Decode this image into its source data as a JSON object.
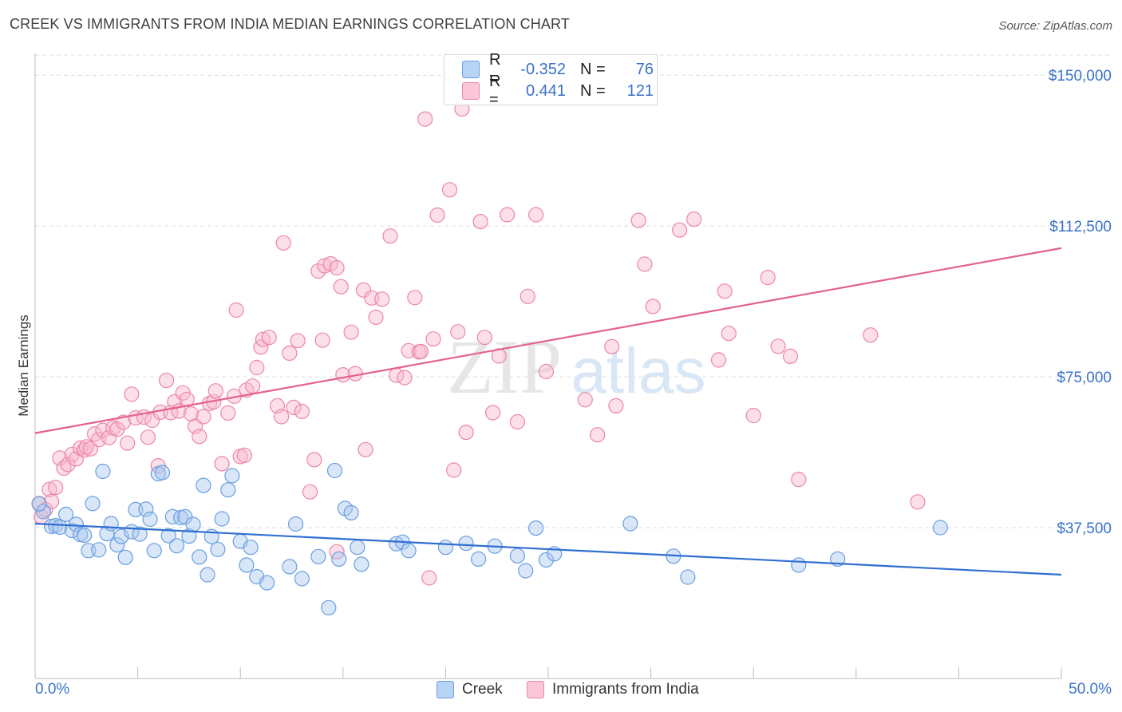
{
  "header": {
    "title": "CREEK VS IMMIGRANTS FROM INDIA MEDIAN EARNINGS CORRELATION CHART",
    "source": "Source: ZipAtlas.com"
  },
  "legend": {
    "r_label": "R =",
    "n_label": "N =",
    "rows": [
      {
        "name": "Creek",
        "r": "-0.352",
        "n": "76"
      },
      {
        "name": "Immigrants from India",
        "r": "0.441",
        "n": "121"
      }
    ]
  },
  "watermark": {
    "zip": "ZIP",
    "atlas": "atlas"
  },
  "colors": {
    "creek_fill": "#a8c8f0",
    "creek_stroke": "#6a9fe0",
    "creek_line": "#2f6fd1",
    "india_fill": "#f8b8cc",
    "india_stroke": "#ec86a8",
    "india_line": "#e4628c",
    "axis_label": "#3a72c8",
    "grid": "#dddddd"
  },
  "chart_data": {
    "type": "scatter",
    "title": "CREEK VS IMMIGRANTS FROM INDIA MEDIAN EARNINGS CORRELATION CHART",
    "xlabel": "",
    "ylabel": "Median Earnings",
    "xlim": [
      0,
      50
    ],
    "ylim": [
      0,
      155000
    ],
    "x_tick_labels": [
      "0.0%",
      "50.0%"
    ],
    "y_ticks": [
      {
        "value": 37500,
        "label": "$37,500"
      },
      {
        "value": 75000,
        "label": "$75,000"
      },
      {
        "value": 112500,
        "label": "$112,500"
      },
      {
        "value": 150000,
        "label": "$150,000"
      }
    ],
    "series": [
      {
        "name": "Creek",
        "r": -0.352,
        "n": 76,
        "trend": {
          "x": [
            0,
            50
          ],
          "y": [
            38500,
            25800
          ]
        },
        "points": [
          [
            0.4,
            41500
          ],
          [
            0.8,
            37800
          ],
          [
            1.0,
            38000
          ],
          [
            1.2,
            37600
          ],
          [
            1.5,
            40800
          ],
          [
            1.8,
            36800
          ],
          [
            2.0,
            38300
          ],
          [
            2.2,
            35800
          ],
          [
            2.4,
            35600
          ],
          [
            2.6,
            31800
          ],
          [
            2.8,
            43500
          ],
          [
            3.1,
            32000
          ],
          [
            3.3,
            51500
          ],
          [
            3.5,
            36000
          ],
          [
            3.7,
            38500
          ],
          [
            4.0,
            33200
          ],
          [
            4.2,
            35300
          ],
          [
            4.4,
            30100
          ],
          [
            4.7,
            36500
          ],
          [
            4.9,
            42000
          ],
          [
            5.1,
            35900
          ],
          [
            5.4,
            42100
          ],
          [
            5.6,
            39600
          ],
          [
            5.8,
            31800
          ],
          [
            6.0,
            50900
          ],
          [
            6.2,
            51200
          ],
          [
            6.5,
            35500
          ],
          [
            6.7,
            40200
          ],
          [
            6.9,
            33000
          ],
          [
            7.1,
            40000
          ],
          [
            7.3,
            40200
          ],
          [
            7.5,
            35400
          ],
          [
            7.7,
            38300
          ],
          [
            8.0,
            30200
          ],
          [
            8.2,
            48000
          ],
          [
            8.4,
            25800
          ],
          [
            8.6,
            35300
          ],
          [
            8.9,
            32100
          ],
          [
            9.1,
            39700
          ],
          [
            9.4,
            46900
          ],
          [
            9.6,
            50400
          ],
          [
            10.0,
            34100
          ],
          [
            10.3,
            28200
          ],
          [
            10.5,
            32600
          ],
          [
            10.8,
            25300
          ],
          [
            11.3,
            23800
          ],
          [
            12.4,
            27800
          ],
          [
            12.7,
            38400
          ],
          [
            13.0,
            24800
          ],
          [
            13.8,
            30300
          ],
          [
            14.3,
            17600
          ],
          [
            14.6,
            51700
          ],
          [
            14.8,
            29700
          ],
          [
            15.1,
            42300
          ],
          [
            15.4,
            41200
          ],
          [
            15.7,
            32600
          ],
          [
            15.9,
            28400
          ],
          [
            17.6,
            33500
          ],
          [
            17.9,
            33900
          ],
          [
            18.2,
            31800
          ],
          [
            20.0,
            32600
          ],
          [
            21.0,
            33600
          ],
          [
            21.6,
            29700
          ],
          [
            22.4,
            32900
          ],
          [
            23.5,
            30500
          ],
          [
            23.9,
            26800
          ],
          [
            24.4,
            37400
          ],
          [
            24.9,
            29500
          ],
          [
            25.3,
            31000
          ],
          [
            29.0,
            38500
          ],
          [
            31.1,
            30400
          ],
          [
            31.8,
            25200
          ],
          [
            37.2,
            28200
          ],
          [
            39.1,
            29700
          ],
          [
            44.1,
            37500
          ],
          [
            0.2,
            43400
          ]
        ]
      },
      {
        "name": "Immigrants from India",
        "r": 0.441,
        "n": 121,
        "trend": {
          "x": [
            0,
            50
          ],
          "y": [
            61000,
            107000
          ]
        },
        "points": [
          [
            0.2,
            43500
          ],
          [
            0.3,
            40200
          ],
          [
            0.5,
            42000
          ],
          [
            0.7,
            47000
          ],
          [
            0.8,
            44000
          ],
          [
            1.0,
            47500
          ],
          [
            1.2,
            54800
          ],
          [
            1.4,
            52300
          ],
          [
            1.6,
            53200
          ],
          [
            1.8,
            55700
          ],
          [
            2.0,
            54600
          ],
          [
            2.2,
            57300
          ],
          [
            2.4,
            56800
          ],
          [
            2.5,
            57600
          ],
          [
            2.7,
            57100
          ],
          [
            2.9,
            60800
          ],
          [
            3.1,
            59400
          ],
          [
            3.3,
            61700
          ],
          [
            3.6,
            59900
          ],
          [
            3.8,
            62300
          ],
          [
            4.0,
            62000
          ],
          [
            4.3,
            63700
          ],
          [
            4.5,
            58500
          ],
          [
            4.7,
            70700
          ],
          [
            4.9,
            64800
          ],
          [
            5.3,
            65000
          ],
          [
            5.5,
            60000
          ],
          [
            5.7,
            64200
          ],
          [
            6.0,
            52900
          ],
          [
            6.1,
            66200
          ],
          [
            6.4,
            74100
          ],
          [
            6.6,
            66100
          ],
          [
            6.8,
            68800
          ],
          [
            7.0,
            66500
          ],
          [
            7.2,
            71000
          ],
          [
            7.4,
            69400
          ],
          [
            7.6,
            65800
          ],
          [
            7.8,
            62700
          ],
          [
            8.0,
            60200
          ],
          [
            8.2,
            65100
          ],
          [
            8.5,
            68400
          ],
          [
            8.7,
            68800
          ],
          [
            8.8,
            71500
          ],
          [
            9.1,
            53400
          ],
          [
            9.4,
            66000
          ],
          [
            9.7,
            70200
          ],
          [
            9.8,
            91600
          ],
          [
            10.0,
            55200
          ],
          [
            10.3,
            71700
          ],
          [
            10.6,
            72700
          ],
          [
            10.8,
            77300
          ],
          [
            11.0,
            82400
          ],
          [
            11.1,
            84300
          ],
          [
            11.4,
            84800
          ],
          [
            11.8,
            67800
          ],
          [
            12.0,
            65100
          ],
          [
            12.1,
            108300
          ],
          [
            12.4,
            80900
          ],
          [
            12.6,
            67400
          ],
          [
            12.8,
            84000
          ],
          [
            13.0,
            66400
          ],
          [
            13.4,
            46400
          ],
          [
            13.6,
            54400
          ],
          [
            13.8,
            101300
          ],
          [
            14.0,
            84100
          ],
          [
            14.1,
            102600
          ],
          [
            14.4,
            103100
          ],
          [
            14.7,
            102100
          ],
          [
            14.9,
            97400
          ],
          [
            15.0,
            75500
          ],
          [
            15.4,
            86100
          ],
          [
            15.6,
            75800
          ],
          [
            16.0,
            96600
          ],
          [
            16.1,
            56900
          ],
          [
            16.4,
            94600
          ],
          [
            16.6,
            89800
          ],
          [
            16.9,
            94300
          ],
          [
            17.3,
            110000
          ],
          [
            17.6,
            75400
          ],
          [
            18.0,
            74800
          ],
          [
            18.2,
            81500
          ],
          [
            18.5,
            94700
          ],
          [
            18.7,
            81200
          ],
          [
            18.8,
            81300
          ],
          [
            19.0,
            139100
          ],
          [
            19.2,
            25000
          ],
          [
            19.4,
            84400
          ],
          [
            19.6,
            115200
          ],
          [
            20.2,
            121500
          ],
          [
            20.4,
            51800
          ],
          [
            20.6,
            86200
          ],
          [
            20.8,
            141600
          ],
          [
            21.0,
            61200
          ],
          [
            21.7,
            113600
          ],
          [
            21.9,
            84800
          ],
          [
            22.3,
            66100
          ],
          [
            22.6,
            80200
          ],
          [
            23.0,
            115300
          ],
          [
            23.5,
            63800
          ],
          [
            24.0,
            95000
          ],
          [
            24.4,
            115300
          ],
          [
            24.9,
            76300
          ],
          [
            26.8,
            69300
          ],
          [
            27.4,
            60600
          ],
          [
            28.1,
            82500
          ],
          [
            28.3,
            67800
          ],
          [
            29.4,
            113900
          ],
          [
            29.7,
            103000
          ],
          [
            30.1,
            92500
          ],
          [
            31.4,
            111500
          ],
          [
            32.1,
            114200
          ],
          [
            33.3,
            79200
          ],
          [
            33.6,
            96300
          ],
          [
            33.8,
            85800
          ],
          [
            35.0,
            65400
          ],
          [
            35.7,
            99700
          ],
          [
            36.2,
            82600
          ],
          [
            36.8,
            80100
          ],
          [
            37.2,
            49500
          ],
          [
            40.7,
            85400
          ],
          [
            43.0,
            43900
          ],
          [
            14.7,
            31500
          ],
          [
            10.2,
            55500
          ]
        ]
      }
    ]
  }
}
